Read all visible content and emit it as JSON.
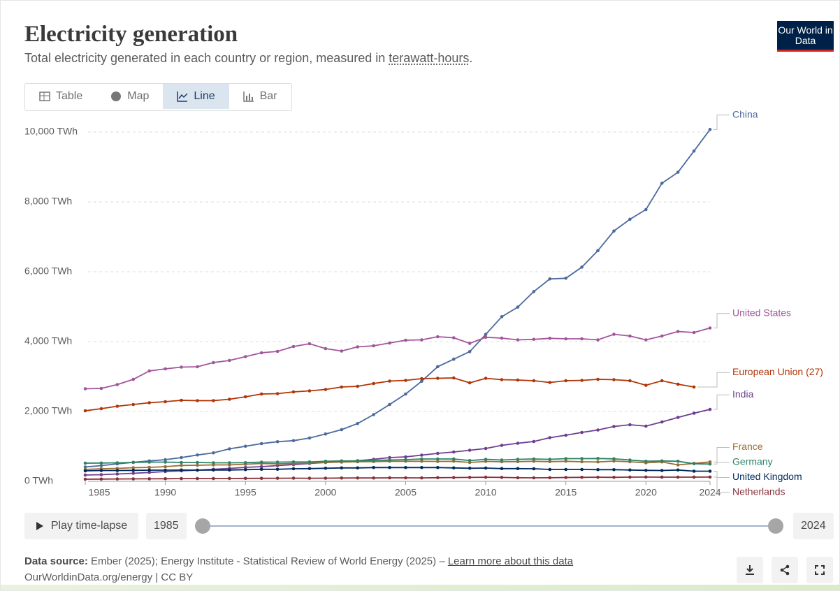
{
  "header": {
    "title": "Electricity generation",
    "subtitle": "Total electricity generated in each country or region, measured in",
    "subtitle_link": "terawatt-hours",
    "subtitle_end": ".",
    "logo": "Our World in Data"
  },
  "tabs": [
    "Table",
    "Map",
    "Line",
    "Bar"
  ],
  "controls": {
    "play": "Play time-lapse"
  },
  "footer": {
    "source_label": "Data source:",
    "source": "Ember (2025); Energy Institute - Statistical Review of World Energy (2025) –",
    "source_link": "Learn more about this data",
    "url": "OurWorldinData.org/energy | CC BY"
  },
  "chart_data": {
    "type": "line",
    "x": [
      1985,
      1986,
      1987,
      1988,
      1989,
      1990,
      1991,
      1992,
      1993,
      1994,
      1995,
      1996,
      1997,
      1998,
      1999,
      2000,
      2001,
      2002,
      2003,
      2004,
      2005,
      2006,
      2007,
      2008,
      2009,
      2010,
      2011,
      2012,
      2013,
      2014,
      2015,
      2016,
      2017,
      2018,
      2019,
      2020,
      2021,
      2022,
      2023,
      2024
    ],
    "xlim": [
      1985,
      2024
    ],
    "xticks": [
      1985,
      1990,
      1995,
      2000,
      2005,
      2010,
      2015,
      2020,
      2024
    ],
    "ylim": [
      0,
      10000
    ],
    "yticks": [
      {
        "value": 0,
        "label": "0 TWh"
      },
      {
        "value": 2000,
        "label": "2,000 TWh"
      },
      {
        "value": 4000,
        "label": "4,000 TWh"
      },
      {
        "value": 6000,
        "label": "6,000 TWh"
      },
      {
        "value": 8000,
        "label": "8,000 TWh"
      },
      {
        "value": 10000,
        "label": "10,000 TWh"
      }
    ],
    "grid": true,
    "series": [
      {
        "name": "China",
        "color": "#4c6a9c",
        "values": [
          410,
          450,
          500,
          545,
          585,
          620,
          680,
          755,
          815,
          930,
          1005,
          1080,
          1135,
          1165,
          1240,
          1356,
          1480,
          1654,
          1910,
          2200,
          2500,
          2866,
          3282,
          3496,
          3715,
          4208,
          4713,
          4988,
          5432,
          5795,
          5815,
          6133,
          6604,
          7166,
          7503,
          7779,
          8534,
          8849,
          9456,
          10073
        ]
      },
      {
        "name": "United States",
        "color": "#a2559c",
        "values": [
          2650,
          2660,
          2770,
          2920,
          3160,
          3220,
          3270,
          3280,
          3400,
          3460,
          3570,
          3680,
          3720,
          3860,
          3940,
          3800,
          3730,
          3850,
          3880,
          3960,
          4040,
          4050,
          4140,
          4110,
          3950,
          4125,
          4100,
          4050,
          4065,
          4095,
          4080,
          4080,
          4050,
          4210,
          4160,
          4050,
          4160,
          4290,
          4260,
          4390
        ]
      },
      {
        "name": "European Union (27)",
        "color": "#b13507",
        "values": [
          2020,
          2080,
          2150,
          2200,
          2250,
          2280,
          2320,
          2310,
          2310,
          2350,
          2420,
          2500,
          2510,
          2560,
          2590,
          2630,
          2700,
          2720,
          2800,
          2870,
          2890,
          2940,
          2950,
          2960,
          2820,
          2950,
          2910,
          2900,
          2880,
          2830,
          2880,
          2890,
          2920,
          2910,
          2880,
          2750,
          2880,
          2780,
          2700,
          null
        ]
      },
      {
        "name": "India",
        "color": "#6d3e91",
        "values": [
          180,
          190,
          210,
          230,
          255,
          280,
          300,
          320,
          345,
          370,
          400,
          420,
          450,
          480,
          510,
          540,
          560,
          590,
          630,
          680,
          700,
          750,
          800,
          840,
          890,
          940,
          1030,
          1090,
          1140,
          1250,
          1320,
          1400,
          1470,
          1570,
          1620,
          1580,
          1700,
          1830,
          1950,
          2060
        ]
      },
      {
        "name": "France",
        "color": "#996d39",
        "values": [
          340,
          360,
          370,
          390,
          400,
          420,
          455,
          460,
          470,
          470,
          490,
          510,
          500,
          510,
          520,
          540,
          550,
          560,
          565,
          575,
          575,
          575,
          570,
          575,
          540,
          570,
          560,
          565,
          575,
          565,
          575,
          560,
          555,
          580,
          560,
          530,
          555,
          470,
          515,
          555
        ]
      },
      {
        "name": "Germany",
        "color": "#2c8465",
        "values": [
          520,
          525,
          530,
          540,
          550,
          550,
          540,
          540,
          530,
          530,
          535,
          550,
          550,
          555,
          555,
          575,
          585,
          585,
          600,
          610,
          620,
          640,
          640,
          640,
          595,
          630,
          610,
          630,
          640,
          630,
          650,
          650,
          655,
          645,
          610,
          575,
          585,
          575,
          505,
          495
        ]
      },
      {
        "name": "United Kingdom",
        "color": "#00295b",
        "values": [
          300,
          310,
          310,
          315,
          320,
          320,
          325,
          320,
          325,
          325,
          335,
          345,
          345,
          360,
          365,
          375,
          385,
          385,
          395,
          395,
          395,
          395,
          395,
          385,
          375,
          380,
          365,
          365,
          360,
          340,
          340,
          340,
          335,
          335,
          325,
          315,
          310,
          325,
          290,
          290
        ]
      },
      {
        "name": "Netherlands",
        "color": "#883039",
        "values": [
          60,
          65,
          68,
          70,
          72,
          75,
          78,
          80,
          80,
          82,
          85,
          86,
          88,
          91,
          88,
          90,
          94,
          96,
          96,
          101,
          100,
          98,
          105,
          108,
          113,
          118,
          113,
          102,
          100,
          103,
          110,
          115,
          117,
          115,
          121,
          123,
          121,
          120,
          121,
          122
        ]
      }
    ]
  }
}
